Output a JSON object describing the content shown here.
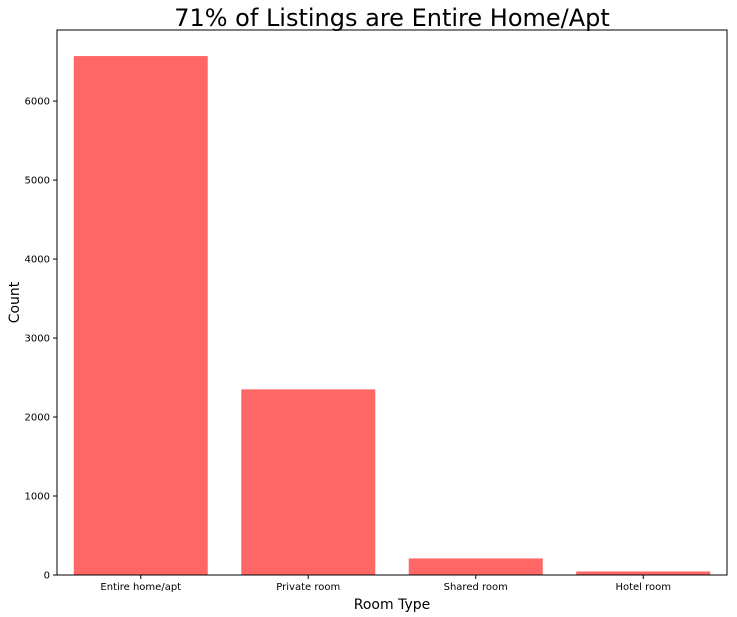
{
  "chart_data": {
    "type": "bar",
    "title": "71% of Listings are Entire Home/Apt",
    "xlabel": "Room Type",
    "ylabel": "Count",
    "categories": [
      "Entire home/apt",
      "Private room",
      "Shared room",
      "Hotel room"
    ],
    "values": [
      6570,
      2350,
      210,
      45
    ],
    "ylim": [
      0,
      6900
    ],
    "yticks": [
      0,
      1000,
      2000,
      3000,
      4000,
      5000,
      6000
    ],
    "ytick_labels": [
      "0",
      "1000",
      "2000",
      "3000",
      "4000",
      "5000",
      "6000"
    ],
    "bar_color": "#ff6666",
    "grid": false,
    "legend": "none"
  }
}
